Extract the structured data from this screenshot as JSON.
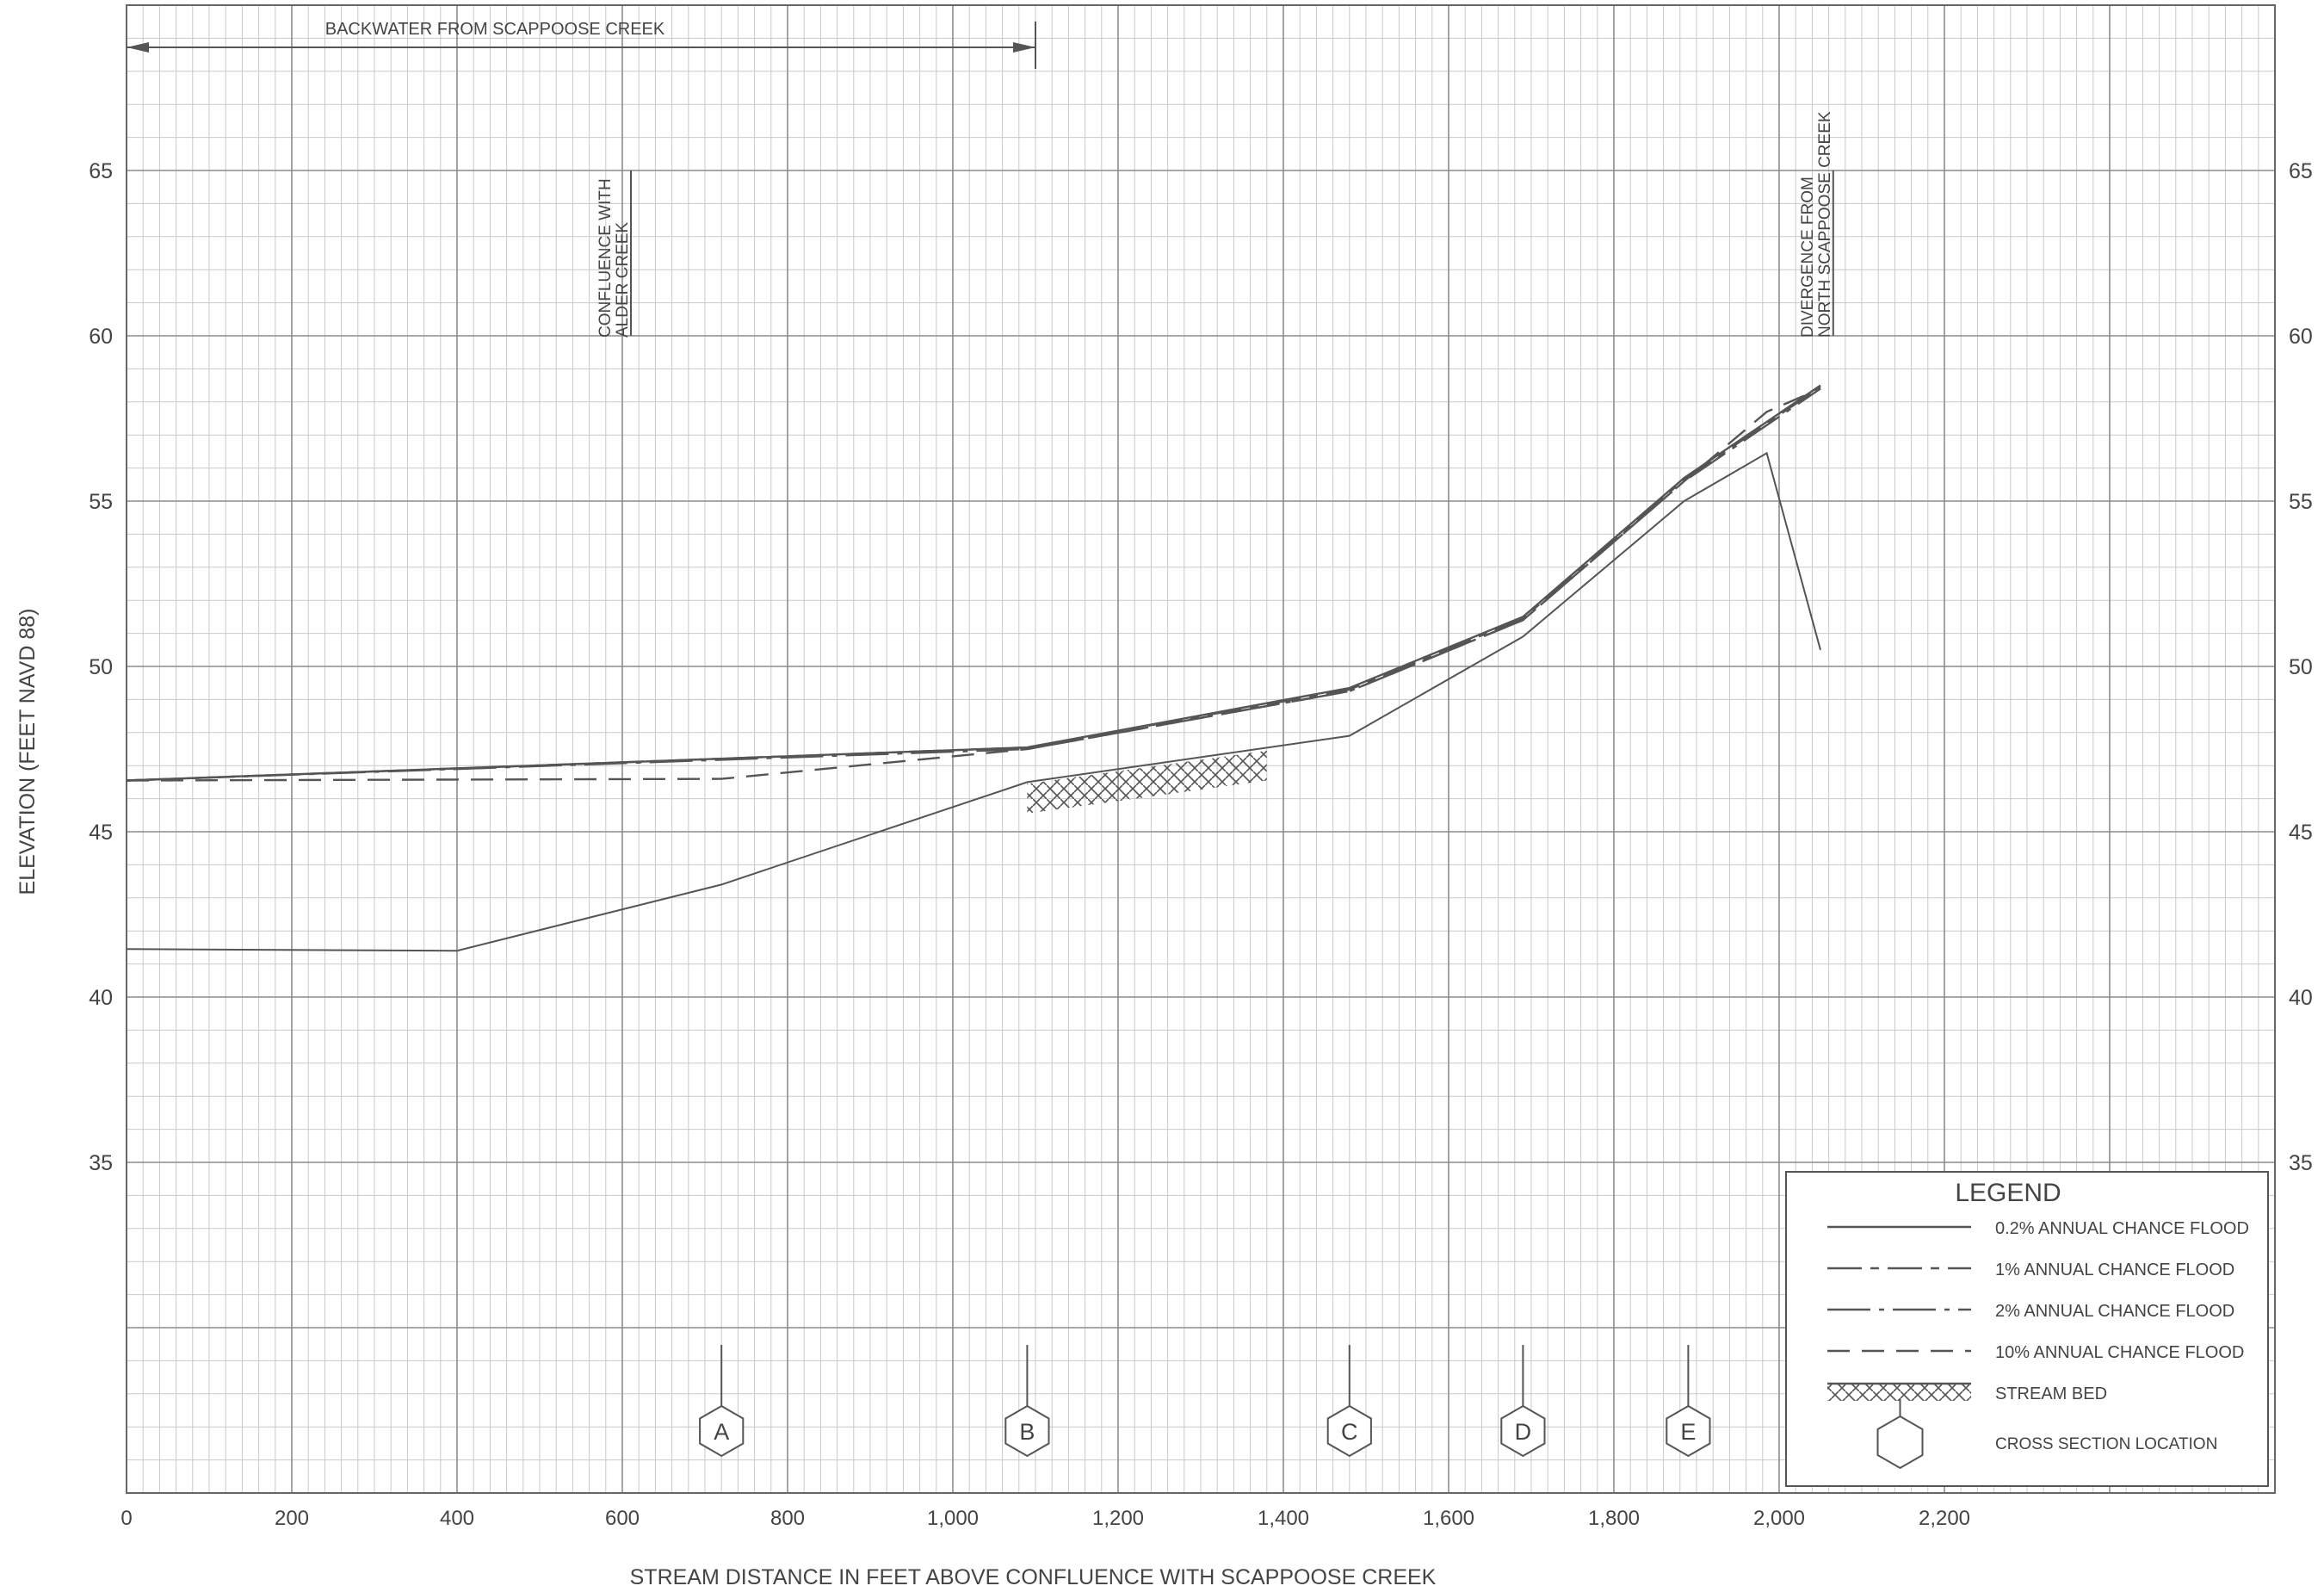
{
  "chart_data": {
    "type": "line",
    "xlabel": "STREAM DISTANCE IN FEET ABOVE CONFLUENCE WITH SCAPPOOSE CREEK",
    "ylabel": "ELEVATION (FEET NAVD 88)",
    "xlim": [
      0,
      2600
    ],
    "ylim": [
      25,
      70
    ],
    "x_ticks": [
      {
        "v": 0,
        "label": "0"
      },
      {
        "v": 200,
        "label": "200"
      },
      {
        "v": 400,
        "label": "400"
      },
      {
        "v": 600,
        "label": "600"
      },
      {
        "v": 800,
        "label": "800"
      },
      {
        "v": 1000,
        "label": "1,000"
      },
      {
        "v": 1200,
        "label": "1,200"
      },
      {
        "v": 1400,
        "label": "1,400"
      },
      {
        "v": 1600,
        "label": "1,600"
      },
      {
        "v": 1800,
        "label": "1,800"
      },
      {
        "v": 2000,
        "label": "2,000"
      },
      {
        "v": 2200,
        "label": "2,200"
      }
    ],
    "y_ticks": [
      {
        "v": 35,
        "label": "35"
      },
      {
        "v": 40,
        "label": "40"
      },
      {
        "v": 45,
        "label": "45"
      },
      {
        "v": 50,
        "label": "50"
      },
      {
        "v": 55,
        "label": "55"
      },
      {
        "v": 60,
        "label": "60"
      },
      {
        "v": 65,
        "label": "65"
      }
    ],
    "grid": true,
    "series": [
      {
        "name": "0.2% ANNUAL CHANCE FLOOD",
        "style": "solid",
        "x": [
          0,
          1090,
          1480,
          1690,
          1885,
          2050
        ],
        "y": [
          46.55,
          47.55,
          49.35,
          51.5,
          55.7,
          58.5
        ]
      },
      {
        "name": "1% ANNUAL CHANCE FLOOD",
        "style": "dash1",
        "x": [
          0,
          1090,
          1480,
          1690,
          1885,
          2050
        ],
        "y": [
          46.55,
          47.55,
          49.3,
          51.45,
          55.65,
          58.45
        ]
      },
      {
        "name": "2% ANNUAL CHANCE FLOOD",
        "style": "dashdot",
        "x": [
          0,
          1090,
          1480,
          1690,
          1885,
          2050
        ],
        "y": [
          46.55,
          47.5,
          49.25,
          51.4,
          55.6,
          58.4
        ]
      },
      {
        "name": "10% ANNUAL CHANCE FLOOD",
        "style": "dash",
        "x": [
          0,
          720,
          1090,
          1480,
          1690,
          1885,
          1985,
          2050
        ],
        "y": [
          46.55,
          46.6,
          47.5,
          49.25,
          51.4,
          55.6,
          57.7,
          58.4
        ]
      },
      {
        "name": "STREAM BED",
        "style": "bed",
        "x": [
          0,
          400,
          720,
          1090,
          1480,
          1690,
          1885,
          1985,
          2050
        ],
        "y": [
          41.45,
          41.4,
          43.4,
          46.5,
          47.9,
          50.9,
          55.0,
          56.45,
          50.5
        ]
      }
    ],
    "hatched_bed": {
      "x": [
        1090,
        1380
      ],
      "y_top": [
        46.45,
        47.45
      ],
      "depth": 0.9
    },
    "cross_sections": [
      {
        "label": "A",
        "x": 720
      },
      {
        "label": "B",
        "x": 1090
      },
      {
        "label": "C",
        "x": 1480
      },
      {
        "label": "D",
        "x": 1690
      },
      {
        "label": "E",
        "x": 1890
      }
    ],
    "annotations": [
      {
        "kind": "range",
        "text": "BACKWATER FROM SCAPPOOSE CREEK",
        "x_from": 0,
        "x_to": 1100
      },
      {
        "kind": "vertical",
        "lines": [
          "CONFLUENCE WITH",
          "ALDER CREEK"
        ],
        "x": 600,
        "y_from": 60,
        "y_to": 65
      },
      {
        "kind": "vertical",
        "lines": [
          "DIVERGENCE FROM",
          "NORTH SCAPPOOSE CREEK"
        ],
        "x": 2055,
        "y_from": 60,
        "y_to": 65
      }
    ],
    "legend": {
      "title": "LEGEND",
      "position": "bottom-right",
      "items": [
        {
          "label": "0.2% ANNUAL CHANCE FLOOD",
          "style": "solid"
        },
        {
          "label": "1% ANNUAL CHANCE FLOOD",
          "style": "dash1"
        },
        {
          "label": "2% ANNUAL CHANCE FLOOD",
          "style": "dashdot"
        },
        {
          "label": "10% ANNUAL CHANCE FLOOD",
          "style": "dash"
        },
        {
          "label": "STREAM BED",
          "style": "hatch"
        },
        {
          "label": "CROSS SECTION LOCATION",
          "style": "hexagon"
        }
      ]
    },
    "colors": {
      "grid_minor": "#c9c9c9",
      "grid_major": "#8c8c8c",
      "line": "#555555",
      "text": "#444444"
    }
  }
}
